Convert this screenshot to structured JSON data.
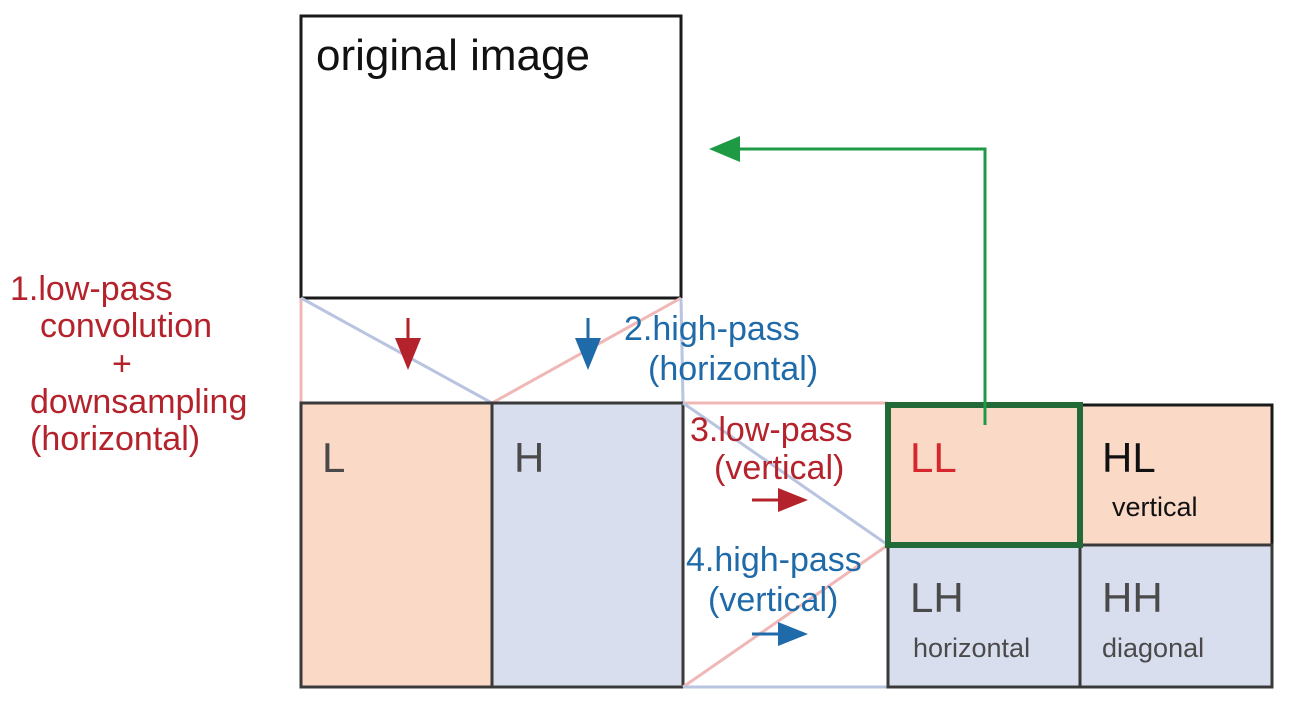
{
  "original_label": "original image",
  "steps": {
    "step1": [
      "1.low-pass",
      "convolution",
      "+",
      "downsampling",
      "(horizontal)"
    ],
    "step2": [
      "2.high-pass",
      "(horizontal)"
    ],
    "step3": [
      "3.low-pass",
      "(vertical)"
    ],
    "step4": [
      "4.high-pass",
      "(vertical)"
    ]
  },
  "stage1": {
    "low_label": "L",
    "high_label": "H"
  },
  "stage2": {
    "ll": {
      "label": "LL"
    },
    "hl": {
      "label": "HL",
      "sublabel": "vertical"
    },
    "lh": {
      "label": "LH",
      "sublabel": "horizontal"
    },
    "hh": {
      "label": "HH",
      "sublabel": "diagonal"
    }
  },
  "colors": {
    "low_fill": "#fad9c6",
    "high_fill": "#d9deef",
    "low_text": "#b4232c",
    "high_text": "#1f6aa9",
    "loop_arrow": "#1f9a44",
    "ll_border": "#226b39",
    "ll_text": "#d6262e"
  }
}
